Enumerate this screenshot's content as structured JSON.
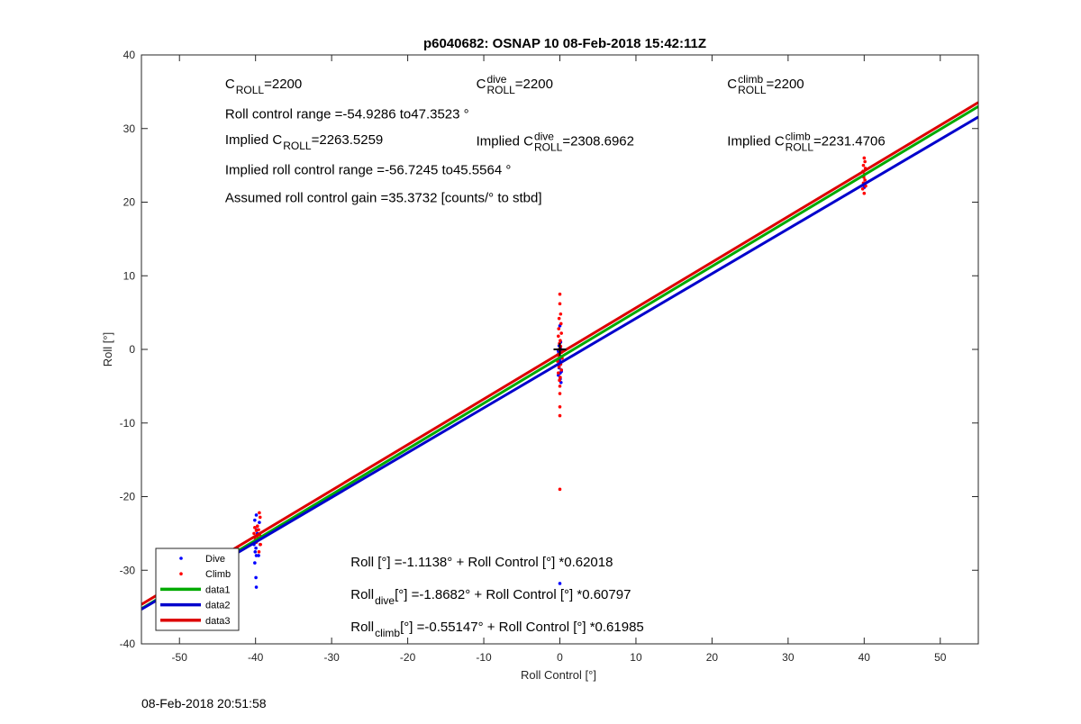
{
  "chart_data": {
    "type": "scatter",
    "title": "p6040682: OSNAP 10 08-Feb-2018 15:42:11Z",
    "xlabel": "Roll Control [°]",
    "ylabel": "Roll [°]",
    "xlim": [
      -55,
      55
    ],
    "ylim": [
      -40,
      40
    ],
    "xticks": [
      -50,
      -40,
      -30,
      -20,
      -10,
      0,
      10,
      20,
      30,
      40,
      50
    ],
    "yticks": [
      -40,
      -30,
      -20,
      -10,
      0,
      10,
      20,
      30,
      40
    ],
    "grid": false,
    "legend_position": "bottom-left",
    "series": [
      {
        "name": "Dive",
        "kind": "points",
        "color": "#0000ff",
        "x": [
          -50,
          -40,
          -40,
          -40,
          -40,
          -40,
          -40,
          -40,
          -40,
          -40,
          -40,
          -40,
          -40,
          -40,
          -39.5,
          -39.5,
          -39.5,
          0,
          0,
          0,
          0,
          0,
          0,
          0,
          0,
          0,
          0,
          0,
          0,
          0,
          0,
          0,
          0,
          0,
          0,
          0,
          40
        ],
        "y": [
          -28.5,
          -22.5,
          -23.2,
          -24.5,
          -25.5,
          -26.0,
          -26.5,
          -27.0,
          -27.5,
          -28.0,
          -29.0,
          -31.0,
          -32.3,
          -25.0,
          -23.5,
          -26.5,
          -28.0,
          3.2,
          1.0,
          0.5,
          0.0,
          -0.5,
          -1.0,
          -1.5,
          -2.0,
          -2.5,
          -3.0,
          -3.5,
          -4.0,
          -4.5,
          -2.2,
          -1.2,
          -0.2,
          -2.8,
          -3.2,
          -31.8,
          22.0
        ],
        "x_jitter": [
          0,
          0.1,
          -0.1,
          0.15,
          -0.15,
          0.2,
          -0.2,
          0.05,
          -0.05,
          0.1,
          -0.1,
          0.05,
          0.1,
          0.25,
          0,
          0.1,
          -0.1,
          0,
          0.1,
          -0.1,
          0.15,
          -0.15,
          0.05,
          -0.05,
          0.1,
          -0.1,
          0.2,
          -0.2,
          0.05,
          0.15,
          -0.1,
          0.1,
          -0.2,
          0.2,
          0.05,
          0,
          0
        ]
      },
      {
        "name": "Climb",
        "kind": "points",
        "color": "#ff0000",
        "x": [
          -50,
          -40,
          -40,
          -40,
          -40,
          -40,
          -40,
          -40,
          -39.5,
          -39.5,
          -39.5,
          -39.5,
          -39.5,
          -39.5,
          0,
          0,
          0,
          0,
          0,
          0,
          0,
          0,
          0,
          0,
          0,
          0,
          0,
          0,
          0,
          0,
          0,
          0,
          0,
          0,
          0,
          0,
          0,
          0,
          0,
          0,
          0,
          40,
          40,
          40,
          40,
          40,
          40,
          40,
          40,
          40,
          40,
          40,
          40
        ],
        "y": [
          -30.5,
          -24.2,
          -24.6,
          -25.0,
          -25.4,
          -25.8,
          -26.2,
          -24.0,
          -22.2,
          -22.8,
          -24.5,
          -25.2,
          -26.5,
          -27.5,
          7.5,
          6.2,
          4.8,
          4.2,
          3.5,
          2.8,
          2.2,
          1.8,
          1.2,
          0.8,
          0.4,
          0.0,
          -0.4,
          -0.8,
          -1.2,
          -1.6,
          -2.0,
          -2.4,
          -2.8,
          -3.2,
          -3.8,
          -4.2,
          -5.0,
          -6.0,
          -7.8,
          -9.0,
          -19.0,
          26.0,
          25.5,
          25.0,
          24.6,
          24.2,
          23.8,
          23.4,
          23.0,
          22.6,
          22.2,
          21.8,
          21.2
        ],
        "x_jitter": [
          0,
          -0.1,
          0.1,
          -0.2,
          0.2,
          0,
          0.1,
          0.25,
          0,
          0.1,
          -0.1,
          0.05,
          0.15,
          -0.05,
          0,
          0,
          0.1,
          -0.1,
          0.15,
          -0.15,
          0.2,
          -0.2,
          0.05,
          -0.05,
          0.1,
          -0.1,
          0.2,
          -0.2,
          0.3,
          -0.3,
          0.1,
          -0.1,
          0.2,
          -0.2,
          0.05,
          -0.05,
          0,
          0,
          0,
          0,
          0,
          0,
          0.1,
          -0.1,
          0.15,
          -0.15,
          0.05,
          -0.05,
          0.1,
          -0.1,
          0.2,
          -0.2,
          0
        ]
      },
      {
        "name": "data1",
        "kind": "line",
        "color": "#00aa00",
        "x": [
          -55,
          55
        ],
        "y": [
          -35.2246,
          32.9956
        ]
      },
      {
        "name": "data2",
        "kind": "line",
        "color": "#0000cc",
        "x": [
          -55,
          55
        ],
        "y": [
          -35.3066,
          31.5702
        ]
      },
      {
        "name": "data3",
        "kind": "line",
        "color": "#dd0000",
        "x": [
          -55,
          55
        ],
        "y": [
          -34.6432,
          33.5402
        ]
      }
    ],
    "marker": {
      "x": 0,
      "y": 0,
      "symbol": "+",
      "color": "#000000"
    },
    "annotations": [
      {
        "id": "c-roll",
        "main": "C",
        "sub": "ROLL",
        "sup": "",
        "rest": "=2200",
        "x": -44,
        "y": 35.5
      },
      {
        "id": "c-roll-dive",
        "main": "C",
        "sub": "ROLL",
        "sup": "dive",
        "rest": " =2200",
        "x": -11,
        "y": 35.5
      },
      {
        "id": "c-roll-climb",
        "main": "C",
        "sub": "ROLL",
        "sup": "climb",
        "rest": " =2200",
        "x": 22,
        "y": 35.5
      },
      {
        "id": "roll-range",
        "main": "Roll control range =-54.9286 to47.3523 °",
        "sub": "",
        "sup": "",
        "rest": "",
        "x": -44,
        "y": 31.4
      },
      {
        "id": "implied-c-roll",
        "main": "Implied C",
        "sub": "ROLL",
        "sup": "",
        "rest": " =2263.5259",
        "x": -44,
        "y": 27.9
      },
      {
        "id": "implied-c-roll-dive",
        "main": "Implied C",
        "sub": "ROLL",
        "sup": "dive",
        "rest": " =2308.6962",
        "x": -11,
        "y": 27.7
      },
      {
        "id": "implied-c-roll-climb",
        "main": "Implied C",
        "sub": "ROLL",
        "sup": "climb",
        "rest": " =2231.4706",
        "x": 22,
        "y": 27.7
      },
      {
        "id": "implied-range",
        "main": "Implied roll control range =-56.7245 to45.5564 °",
        "sub": "",
        "sup": "",
        "rest": "",
        "x": -44,
        "y": 23.8
      },
      {
        "id": "gain",
        "main": "Assumed roll control gain =35.3732 [counts/° to stbd]",
        "sub": "",
        "sup": "",
        "rest": "",
        "x": -44,
        "y": 20.0
      },
      {
        "id": "fit-all",
        "main": "Roll [°] =-1.1138° + Roll Control [°] *0.62018",
        "sub": "",
        "sup": "",
        "rest": "",
        "x": -27.5,
        "y": -29.5
      },
      {
        "id": "fit-dive",
        "main": "Roll",
        "sub": "dive",
        "sup": "",
        "rest": " [°] =-1.8682° + Roll Control [°] *0.60797",
        "x": -27.5,
        "y": -33.9
      },
      {
        "id": "fit-climb",
        "main": "Roll",
        "sub": "climb",
        "sup": "",
        "rest": " [°] =-0.55147° + Roll Control [°] *0.61985",
        "x": -27.5,
        "y": -38.3
      }
    ]
  },
  "footer": {
    "timestamp": "08-Feb-2018 20:51:58"
  }
}
